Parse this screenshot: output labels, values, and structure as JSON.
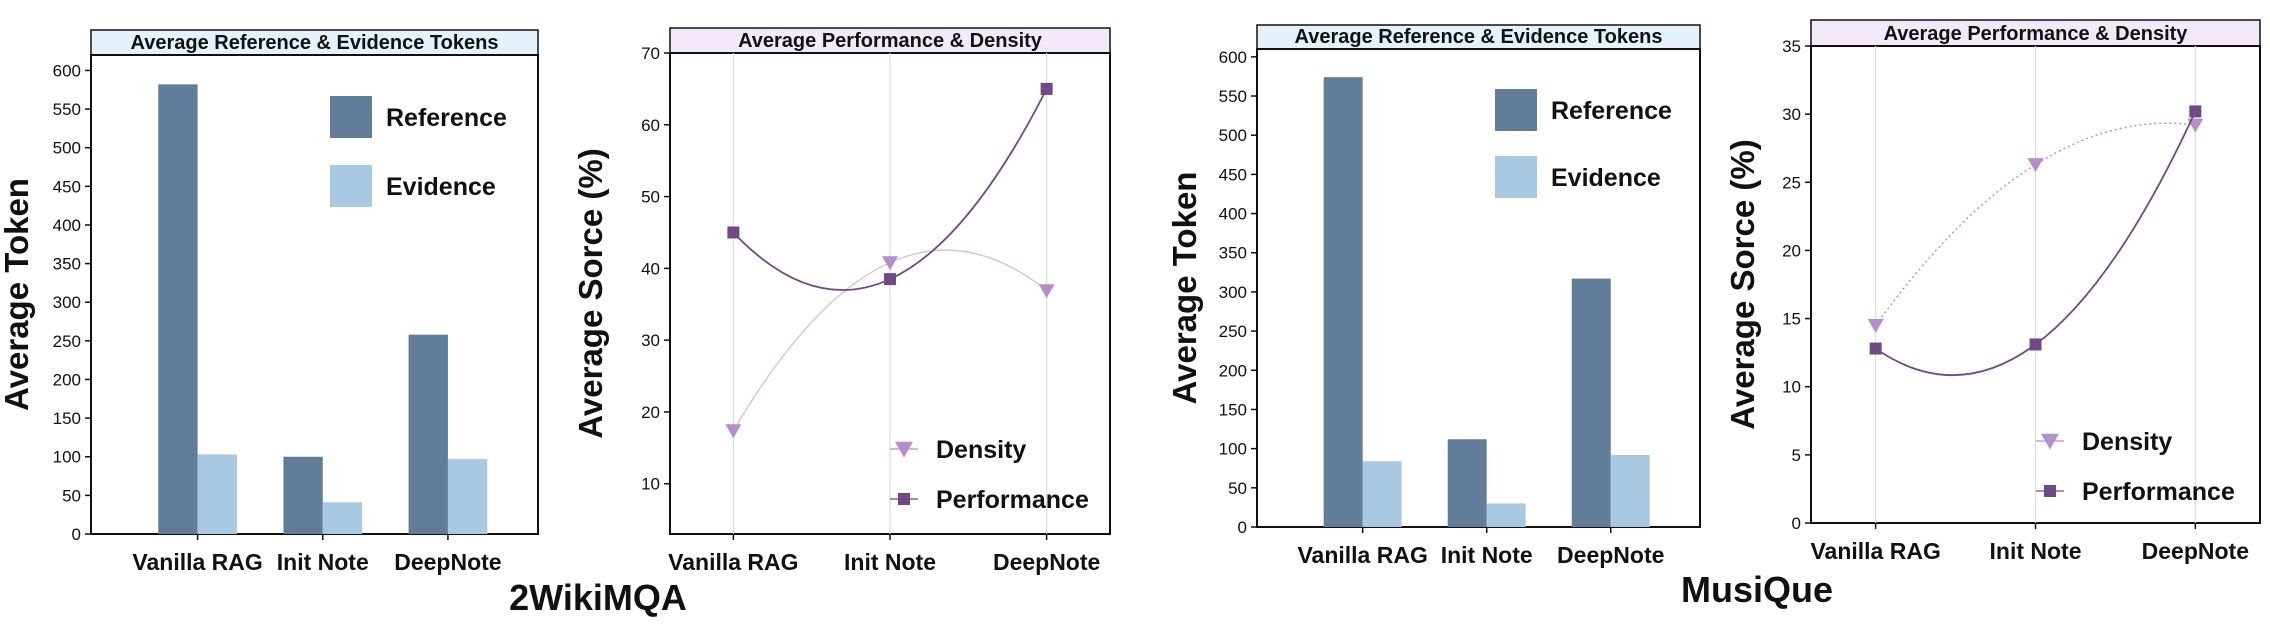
{
  "datasets": [
    {
      "name": "2WikiMQA"
    },
    {
      "name": "MusiQue"
    }
  ],
  "colors": {
    "reference": "#627d99",
    "evidence": "#a9c8e1",
    "density": "#b48ec8",
    "performance": "#6e4a86",
    "bar_title_bg": "#e4f3fb",
    "line_title_bg": "#f3e9f8"
  },
  "chart_data": [
    {
      "type": "bar",
      "dataset": "2WikiMQA",
      "title": "Average Reference & Evidence Tokens",
      "ylabel": "Average Token",
      "xlabel": "",
      "categories": [
        "Vanilla RAG",
        "Init Note",
        "DeepNote"
      ],
      "series": [
        {
          "name": "Reference",
          "values": [
            582,
            100,
            258
          ]
        },
        {
          "name": "Evidence",
          "values": [
            103,
            41,
            97
          ]
        }
      ],
      "ylim": [
        0,
        620
      ],
      "yticks": [
        0,
        50,
        100,
        150,
        200,
        250,
        300,
        350,
        400,
        450,
        500,
        550,
        600
      ],
      "legend": "top-right",
      "grid": false
    },
    {
      "type": "line",
      "dataset": "2WikiMQA",
      "title": "Average Performance & Density",
      "ylabel": "Average Sorce (%)",
      "xlabel": "",
      "categories": [
        "Vanilla RAG",
        "Init Note",
        "DeepNote"
      ],
      "series": [
        {
          "name": "Density",
          "values": [
            17.4,
            40.8,
            36.9
          ],
          "marker": "triangle-down",
          "style": "solid-thin"
        },
        {
          "name": "Performance",
          "values": [
            45.0,
            38.5,
            65.0
          ],
          "marker": "square",
          "style": "solid"
        }
      ],
      "ylim": [
        3,
        70
      ],
      "yticks": [
        10,
        20,
        30,
        40,
        50,
        60,
        70
      ],
      "legend": "bottom-right",
      "grid": "vertical"
    },
    {
      "type": "bar",
      "dataset": "MusiQue",
      "title": "Average Reference & Evidence Tokens",
      "ylabel": "Average Token",
      "xlabel": "",
      "categories": [
        "Vanilla RAG",
        "Init Note",
        "DeepNote"
      ],
      "series": [
        {
          "name": "Reference",
          "values": [
            574,
            112,
            317
          ]
        },
        {
          "name": "Evidence",
          "values": [
            84,
            30,
            92
          ]
        }
      ],
      "ylim": [
        0,
        610
      ],
      "yticks": [
        0,
        50,
        100,
        150,
        200,
        250,
        300,
        350,
        400,
        450,
        500,
        550,
        600
      ],
      "legend": "top-right",
      "grid": false
    },
    {
      "type": "line",
      "dataset": "MusiQue",
      "title": "Average Performance & Density",
      "ylabel": "Average Sorce (%)",
      "xlabel": "",
      "categories": [
        "Vanilla RAG",
        "Init Note",
        "DeepNote"
      ],
      "series": [
        {
          "name": "Density",
          "values": [
            14.5,
            26.3,
            29.2
          ],
          "marker": "triangle-down",
          "style": "dotted"
        },
        {
          "name": "Performance",
          "values": [
            12.8,
            13.1,
            30.2
          ],
          "marker": "square",
          "style": "solid"
        }
      ],
      "ylim": [
        0,
        35
      ],
      "yticks": [
        0,
        5,
        10,
        15,
        20,
        25,
        30,
        35
      ],
      "legend": "bottom-right",
      "grid": "vertical"
    }
  ]
}
